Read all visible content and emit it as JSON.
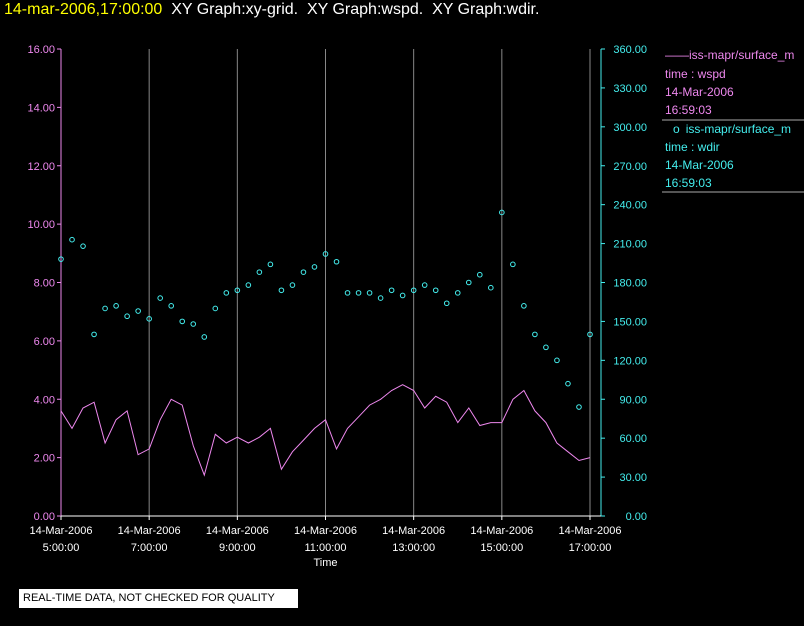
{
  "header": {
    "timestamp": "14-mar-2006,17:00:00",
    "graphs": [
      "XY Graph:xy-grid.",
      "XY Graph:wspd.",
      "XY Graph:wdir."
    ]
  },
  "legend": [
    {
      "marker": "——",
      "name": "iss-mapr/surface_m",
      "var": "time : wspd",
      "date": "14-Mar-2006",
      "time": "16:59:03",
      "color": "#ee88ee"
    },
    {
      "marker": "o",
      "name": "iss-mapr/surface_m",
      "var": "time : wdir",
      "date": "14-Mar-2006",
      "time": "16:59:03",
      "color": "#44eeee"
    }
  ],
  "disclaimer": "REAL-TIME DATA, NOT CHECKED FOR QUALITY",
  "chart_data": {
    "type": "line",
    "xlabel": "Time",
    "x_ticks": [
      {
        "date": "14-Mar-2006",
        "time": "5:00:00",
        "hour": 5
      },
      {
        "date": "14-Mar-2006",
        "time": "7:00:00",
        "hour": 7
      },
      {
        "date": "14-Mar-2006",
        "time": "9:00:00",
        "hour": 9
      },
      {
        "date": "14-Mar-2006",
        "time": "11:00:00",
        "hour": 11
      },
      {
        "date": "14-Mar-2006",
        "time": "13:00:00",
        "hour": 13
      },
      {
        "date": "14-Mar-2006",
        "time": "15:00:00",
        "hour": 15
      },
      {
        "date": "14-Mar-2006",
        "time": "17:00:00",
        "hour": 17
      }
    ],
    "xlim_hours": [
      5,
      17
    ],
    "y_left": {
      "ylim": [
        0,
        16
      ],
      "ticks": [
        "0.00",
        "2.00",
        "4.00",
        "6.00",
        "8.00",
        "10.00",
        "12.00",
        "14.00",
        "16.00"
      ]
    },
    "y_right": {
      "ylim": [
        0,
        360
      ],
      "ticks": [
        "0.00",
        "30.00",
        "60.00",
        "90.00",
        "120.00",
        "150.00",
        "180.00",
        "210.00",
        "240.00",
        "270.00",
        "300.00",
        "330.00",
        "360.00"
      ]
    },
    "vertical_grid": true,
    "series": [
      {
        "var": "wspd",
        "axis": "left",
        "style": "line",
        "x_hours": [
          5.0,
          5.25,
          5.5,
          5.75,
          6.0,
          6.25,
          6.5,
          6.75,
          7.0,
          7.25,
          7.5,
          7.75,
          8.0,
          8.25,
          8.5,
          8.75,
          9.0,
          9.25,
          9.5,
          9.75,
          10.0,
          10.25,
          10.5,
          10.75,
          11.0,
          11.25,
          11.5,
          11.75,
          12.0,
          12.25,
          12.5,
          12.75,
          13.0,
          13.25,
          13.5,
          13.75,
          14.0,
          14.25,
          14.5,
          14.75,
          15.0,
          15.25,
          15.5,
          15.75,
          16.0,
          16.25,
          16.5,
          16.75,
          17.0
        ],
        "values": [
          3.6,
          3.0,
          3.7,
          3.9,
          2.5,
          3.3,
          3.6,
          2.1,
          2.3,
          3.3,
          4.0,
          3.8,
          2.4,
          1.4,
          2.8,
          2.5,
          2.7,
          2.5,
          2.7,
          3.0,
          1.6,
          2.2,
          2.6,
          3.0,
          3.3,
          2.3,
          3.0,
          3.4,
          3.8,
          4.0,
          4.3,
          4.5,
          4.3,
          3.7,
          4.1,
          3.9,
          3.2,
          3.7,
          3.1,
          3.2,
          3.2,
          4.0,
          4.3,
          3.6,
          3.2,
          2.5,
          2.2,
          1.9,
          2.0
        ]
      },
      {
        "var": "wdir",
        "axis": "right",
        "style": "scatter",
        "x_hours": [
          5.0,
          5.25,
          5.5,
          5.75,
          6.0,
          6.25,
          6.5,
          6.75,
          7.0,
          7.25,
          7.5,
          7.75,
          8.0,
          8.25,
          8.5,
          8.75,
          9.0,
          9.25,
          9.5,
          9.75,
          10.0,
          10.25,
          10.5,
          10.75,
          11.0,
          11.25,
          11.5,
          11.75,
          12.0,
          12.25,
          12.5,
          12.75,
          13.0,
          13.25,
          13.5,
          13.75,
          14.0,
          14.25,
          14.5,
          14.75,
          15.0,
          15.25,
          15.5,
          15.75,
          16.0,
          16.25,
          16.5,
          16.75,
          17.0
        ],
        "values": [
          198,
          213,
          208,
          140,
          160,
          162,
          154,
          158,
          152,
          168,
          162,
          150,
          148,
          138,
          160,
          172,
          174,
          178,
          188,
          194,
          174,
          178,
          188,
          192,
          202,
          196,
          172,
          172,
          172,
          168,
          174,
          170,
          174,
          178,
          174,
          164,
          172,
          180,
          186,
          176,
          234,
          194,
          162,
          140,
          130,
          120,
          102,
          84,
          140
        ]
      }
    ]
  }
}
